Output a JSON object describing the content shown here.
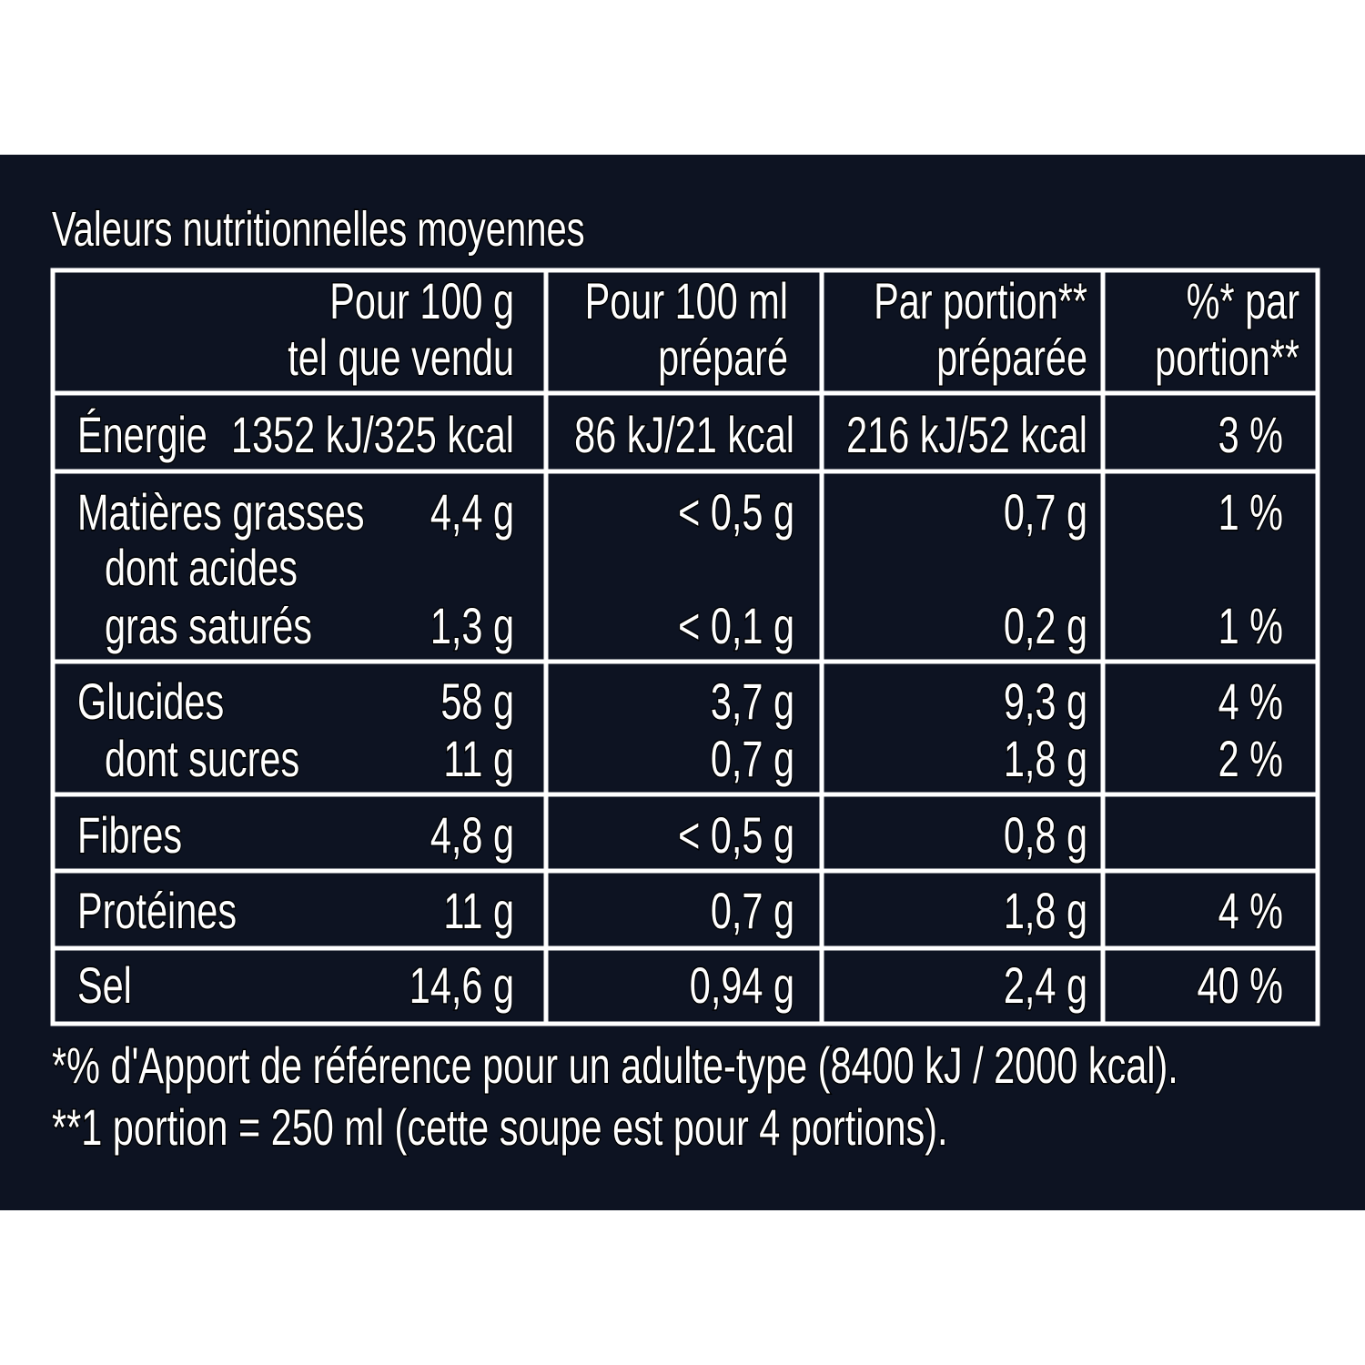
{
  "title": "Valeurs nutritionnelles moyennes",
  "table": {
    "header": [
      [
        "Pour 100 g",
        "tel que vendu"
      ],
      [
        "Pour 100 ml",
        "préparé"
      ],
      [
        "Par portion**",
        "préparée"
      ],
      [
        "%* par",
        "portion**"
      ]
    ],
    "rows": [
      [
        {
          "label": "Énergie",
          "values": [
            "1352 kJ/325 kcal",
            "86 kJ/21 kcal",
            "216 kJ/52 kcal",
            "3 %"
          ]
        }
      ],
      [
        {
          "label": "Matières grasses",
          "values": [
            "4,4 g",
            "< 0,5 g",
            "0,7 g",
            "1 %"
          ]
        },
        {
          "label": "dont acides",
          "sub": true
        },
        {
          "label": "gras saturés",
          "sub": true,
          "values": [
            "1,3 g",
            "< 0,1 g",
            "0,2 g",
            "1 %"
          ]
        }
      ],
      [
        {
          "label": "Glucides",
          "values": [
            "58 g",
            "3,7 g",
            "9,3 g",
            "4 %"
          ]
        },
        {
          "label": "dont sucres",
          "sub": true,
          "values": [
            "11 g",
            "0,7 g",
            "1,8 g",
            "2 %"
          ]
        }
      ],
      [
        {
          "label": "Fibres",
          "values": [
            "4,8 g",
            "< 0,5 g",
            "0,8 g"
          ]
        }
      ],
      [
        {
          "label": "Protéines",
          "values": [
            "11 g",
            "0,7 g",
            "1,8 g",
            "4 %"
          ]
        }
      ],
      [
        {
          "label": "Sel",
          "values": [
            "14,6 g",
            "0,94 g",
            "2,4 g",
            "40 %"
          ]
        }
      ]
    ]
  },
  "footnotes": [
    "*% d'Apport de référence pour un adulte-type (8400 kJ / 2000 kcal).",
    "**1 portion = 250 ml (cette soupe est pour 4 portions)."
  ]
}
